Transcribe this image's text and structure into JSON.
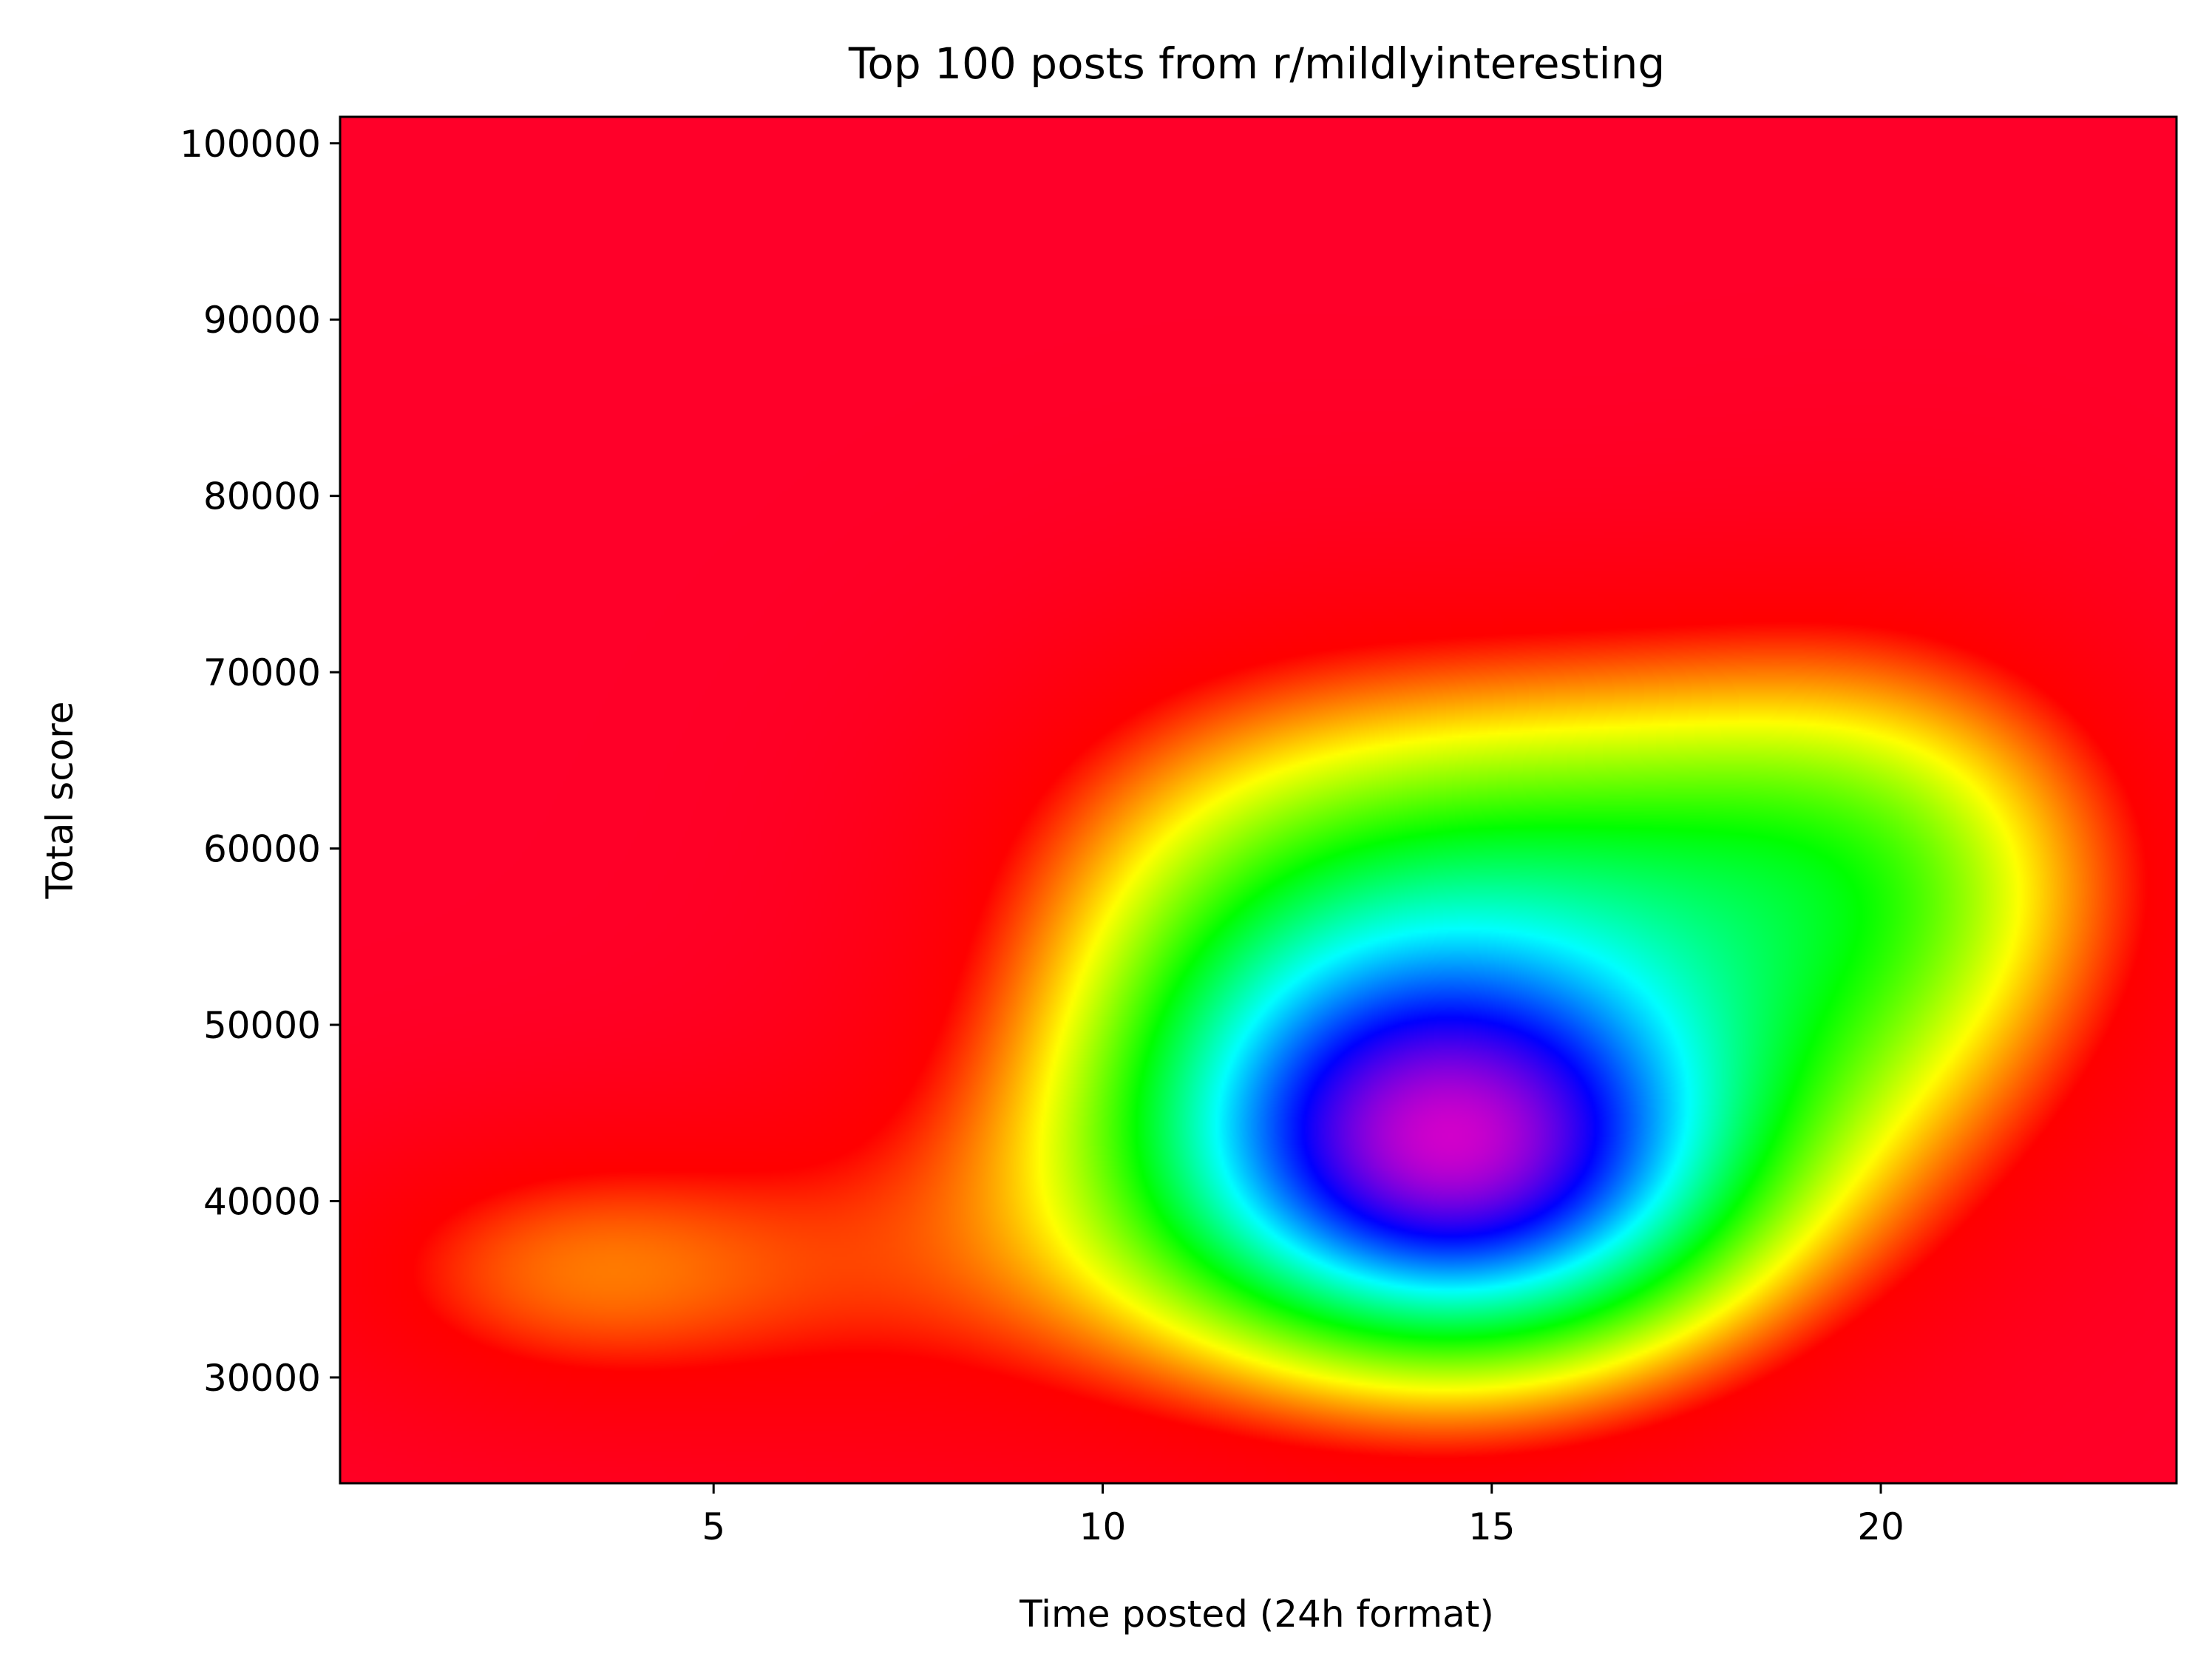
{
  "chart_data": {
    "type": "heatmap",
    "title": "Top 100 posts from r/mildlyinteresting",
    "xlabel": "Time posted (24h format)",
    "ylabel": "Total score",
    "xlim": [
      0.2,
      23.8
    ],
    "ylim": [
      24000,
      101500
    ],
    "x_ticks": [
      5,
      10,
      15,
      20
    ],
    "y_ticks": [
      30000,
      40000,
      50000,
      60000,
      70000,
      80000,
      90000,
      100000
    ],
    "grid": false,
    "legend": "none",
    "colormap": "gist_rainbow",
    "colormap_stops": [
      "#ff0029",
      "#ff0000",
      "#ffff00",
      "#00ff00",
      "#00ffff",
      "#0000ff",
      "#ff00bf"
    ],
    "density_kernels": [
      {
        "x": 14.8,
        "y": 42000,
        "sx": 2.9,
        "sy": 9000,
        "w": 1.0
      },
      {
        "x": 16.5,
        "y": 60000,
        "sx": 4.0,
        "sy": 9000,
        "w": 0.45
      },
      {
        "x": 20.5,
        "y": 55000,
        "sx": 2.2,
        "sy": 12000,
        "w": 0.25
      },
      {
        "x": 11.5,
        "y": 52000,
        "sx": 2.5,
        "sy": 12000,
        "w": 0.25
      },
      {
        "x": 3.0,
        "y": 36000,
        "sx": 2.5,
        "sy": 6000,
        "w": 0.25
      },
      {
        "x": 8.0,
        "y": 36000,
        "sx": 3.0,
        "sy": 9000,
        "w": 0.15
      }
    ],
    "density_max": 1.2
  }
}
